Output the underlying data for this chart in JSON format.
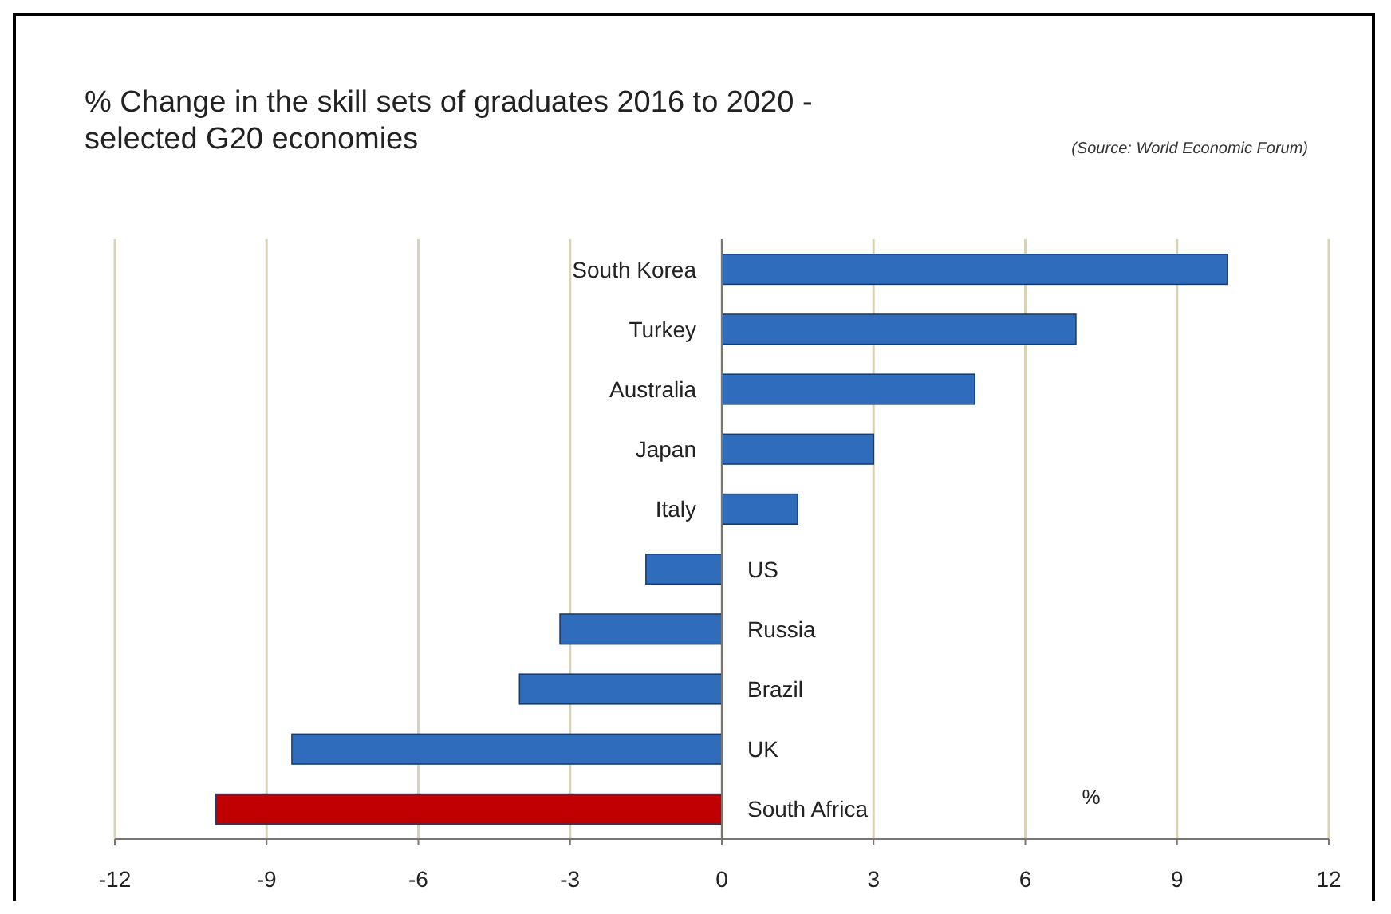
{
  "chart_data": {
    "type": "bar",
    "orientation": "horizontal",
    "title": "% Change in the skill sets of graduates 2016 to 2020 -\nselected G20 economies",
    "xlabel": "%",
    "annotations": [
      "(Source: World Economic Forum)"
    ],
    "categories": [
      "South Korea",
      "Turkey",
      "Australia",
      "Japan",
      "Italy",
      "US",
      "Russia",
      "Brazil",
      "UK",
      "South Africa"
    ],
    "values": [
      10,
      7,
      5,
      3,
      1.5,
      -1.5,
      -3.2,
      -4,
      -8.5,
      -10
    ],
    "colors": [
      "#2f6dbc",
      "#2f6dbc",
      "#2f6dbc",
      "#2f6dbc",
      "#2f6dbc",
      "#2f6dbc",
      "#2f6dbc",
      "#2f6dbc",
      "#2f6dbc",
      "#c00000"
    ],
    "xlim": [
      -12,
      12
    ],
    "xticks": [
      -12,
      -9,
      -6,
      -3,
      0,
      3,
      6,
      9,
      12
    ],
    "grid": "x"
  }
}
